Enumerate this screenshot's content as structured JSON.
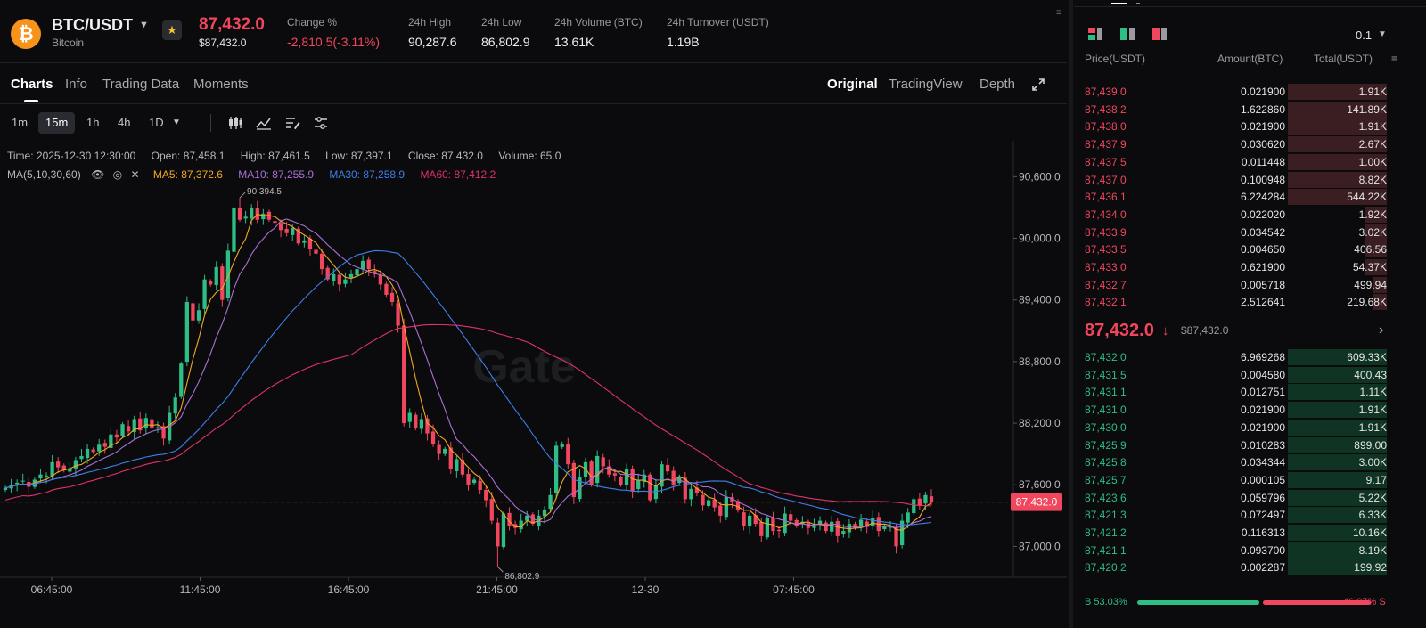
{
  "header": {
    "pair": "BTC/USDT",
    "coin_name": "Bitcoin",
    "last_price": "87,432.0",
    "last_price_usd": "$87,432.0",
    "stats": [
      {
        "label": "Change %",
        "value": "-2,810.5(-3.11%)",
        "color": "red"
      },
      {
        "label": "24h High",
        "value": "90,287.6",
        "color": "white"
      },
      {
        "label": "24h Low",
        "value": "86,802.9",
        "color": "white"
      },
      {
        "label": "24h Volume (BTC)",
        "value": "13.61K",
        "color": "white"
      },
      {
        "label": "24h Turnover (USDT)",
        "value": "1.19B",
        "color": "white"
      }
    ]
  },
  "tabs": [
    "Charts",
    "Info",
    "Trading Data",
    "Moments"
  ],
  "active_tab": "Charts",
  "views": [
    "Original",
    "TradingView",
    "Depth"
  ],
  "active_view": "Original",
  "intervals": [
    "1m",
    "15m",
    "1h",
    "4h",
    "1D"
  ],
  "active_interval": "15m",
  "toolbar_icons": [
    "candle-type-icon",
    "indicators-icon",
    "drawing-icon",
    "settings-icon"
  ],
  "info": {
    "time": "Time: 2025-12-30 12:30:00",
    "open": "Open: 87,458.1",
    "high": "High: 87,461.5",
    "low": "Low: 87,397.1",
    "close": "Close: 87,432.0",
    "volume": "Volume: 65.0"
  },
  "ma_line": {
    "label": "MA(5,10,30,60)",
    "ma5": "MA5: 87,372.6",
    "ma10": "MA10: 87,255.9",
    "ma30": "MA30: 87,258.9",
    "ma60": "MA60: 87,412.2"
  },
  "colors": {
    "up": "#2ebd85",
    "down": "#f0475e",
    "ma5": "#f5a623",
    "ma10": "#a970d6",
    "ma30": "#3f7fe8",
    "ma60": "#e0326b",
    "brand_btc": "#f7931a"
  },
  "chart_data": {
    "type": "candlestick",
    "interval": "15m",
    "y_ticks": [
      "90,600.0",
      "90,000.0",
      "89,400.0",
      "88,800.0",
      "88,200.0",
      "87,600.0",
      "87,000.0"
    ],
    "ylim": [
      86700,
      90950
    ],
    "x_ticks": [
      "06:45:00",
      "11:45:00",
      "16:45:00",
      "21:45:00",
      "12-30",
      "07:45:00"
    ],
    "current_price_label": "87,432.0",
    "current_price": 87432.0,
    "high_annotation": {
      "label": "90,394.5",
      "value": 90394.5
    },
    "low_annotation": {
      "label": "86,802.9",
      "value": 86802.9
    },
    "watermark": "Gate",
    "close": [
      87570,
      87600,
      87620,
      87640,
      87580,
      87650,
      87700,
      87690,
      87820,
      87770,
      87740,
      87760,
      87840,
      87880,
      87950,
      87920,
      87990,
      87970,
      88090,
      88060,
      88190,
      88120,
      88240,
      88130,
      88250,
      88150,
      88160,
      88050,
      88300,
      88450,
      88780,
      89380,
      89200,
      89300,
      89600,
      89550,
      89720,
      89400,
      89880,
      90300,
      90180,
      90210,
      90300,
      90180,
      90240,
      90180,
      90150,
      90080,
      90050,
      90100,
      89950,
      89980,
      89900,
      89850,
      89700,
      89600,
      89650,
      89550,
      89600,
      89650,
      89700,
      89780,
      89700,
      89650,
      89550,
      89450,
      89380,
      89150,
      88200,
      88300,
      88150,
      88240,
      88100,
      88000,
      87900,
      87950,
      87750,
      87850,
      87700,
      87600,
      87650,
      87550,
      87450,
      87250,
      87000,
      87320,
      87200,
      87180,
      87250,
      87300,
      87220,
      87300,
      87360,
      87500,
      87980,
      88000,
      87800,
      87480,
      87680,
      87820,
      87600,
      87880,
      87780,
      87700,
      87690,
      87600,
      87750,
      87540,
      87640,
      87700,
      87450,
      87600,
      87800,
      87730,
      87600,
      87680,
      87460,
      87560,
      87520,
      87400,
      87450,
      87380,
      87300,
      87480,
      87430,
      87350,
      87200,
      87300,
      87220,
      87100,
      87280,
      87150,
      87150,
      87320,
      87250,
      87200,
      87240,
      87180,
      87200,
      87250,
      87150,
      87240,
      87100,
      87150,
      87220,
      87180,
      87260,
      87200,
      87280,
      87150,
      87200,
      87190,
      87000,
      87250,
      87330,
      87460,
      87400,
      87500,
      87432
    ],
    "price_levels_note": "approximate per-candle closes read from gridlines"
  },
  "orderbook": {
    "step": "0.1",
    "headers": {
      "price": "Price(USDT)",
      "amount": "Amount(BTC)",
      "total": "Total(USDT)"
    },
    "asks": [
      {
        "price": "87,439.0",
        "amount": "0.021900",
        "total": "1.91K",
        "depth": 0.74
      },
      {
        "price": "87,438.2",
        "amount": "1.622860",
        "total": "141.89K",
        "depth": 0.74
      },
      {
        "price": "87,438.0",
        "amount": "0.021900",
        "total": "1.91K",
        "depth": 0.74
      },
      {
        "price": "87,437.9",
        "amount": "0.030620",
        "total": "2.67K",
        "depth": 0.74
      },
      {
        "price": "87,437.5",
        "amount": "0.011448",
        "total": "1.00K",
        "depth": 0.74
      },
      {
        "price": "87,437.0",
        "amount": "0.100948",
        "total": "8.82K",
        "depth": 0.74
      },
      {
        "price": "87,436.1",
        "amount": "6.224284",
        "total": "544.22K",
        "depth": 0.74
      },
      {
        "price": "87,434.0",
        "amount": "0.022020",
        "total": "1.92K",
        "depth": 0.16
      },
      {
        "price": "87,433.9",
        "amount": "0.034542",
        "total": "3.02K",
        "depth": 0.16
      },
      {
        "price": "87,433.5",
        "amount": "0.004650",
        "total": "406.56",
        "depth": 0.16
      },
      {
        "price": "87,433.0",
        "amount": "0.621900",
        "total": "54.37K",
        "depth": 0.16
      },
      {
        "price": "87,432.7",
        "amount": "0.005718",
        "total": "499.94",
        "depth": 0.11
      },
      {
        "price": "87,432.1",
        "amount": "2.512641",
        "total": "219.68K",
        "depth": 0.11
      }
    ],
    "mid_price": "87,432.0",
    "mid_price_usd": "$87,432.0",
    "bids": [
      {
        "price": "87,432.0",
        "amount": "6.969268",
        "total": "609.33K",
        "depth": 0.74
      },
      {
        "price": "87,431.5",
        "amount": "0.004580",
        "total": "400.43",
        "depth": 0.74
      },
      {
        "price": "87,431.1",
        "amount": "0.012751",
        "total": "1.11K",
        "depth": 0.74
      },
      {
        "price": "87,431.0",
        "amount": "0.021900",
        "total": "1.91K",
        "depth": 0.74
      },
      {
        "price": "87,430.0",
        "amount": "0.021900",
        "total": "1.91K",
        "depth": 0.74
      },
      {
        "price": "87,425.9",
        "amount": "0.010283",
        "total": "899.00",
        "depth": 0.74
      },
      {
        "price": "87,425.8",
        "amount": "0.034344",
        "total": "3.00K",
        "depth": 0.74
      },
      {
        "price": "87,425.7",
        "amount": "0.000105",
        "total": "9.17",
        "depth": 0.74
      },
      {
        "price": "87,423.6",
        "amount": "0.059796",
        "total": "5.22K",
        "depth": 0.74
      },
      {
        "price": "87,421.3",
        "amount": "0.072497",
        "total": "6.33K",
        "depth": 0.74
      },
      {
        "price": "87,421.2",
        "amount": "0.116313",
        "total": "10.16K",
        "depth": 0.74
      },
      {
        "price": "87,421.1",
        "amount": "0.093700",
        "total": "8.19K",
        "depth": 0.74
      },
      {
        "price": "87,420.2",
        "amount": "0.002287",
        "total": "199.92",
        "depth": 0.74
      }
    ],
    "buy_ratio_label": "B 53.03%",
    "sell_ratio_label": "46.97% S",
    "buy_ratio": 0.5303
  }
}
